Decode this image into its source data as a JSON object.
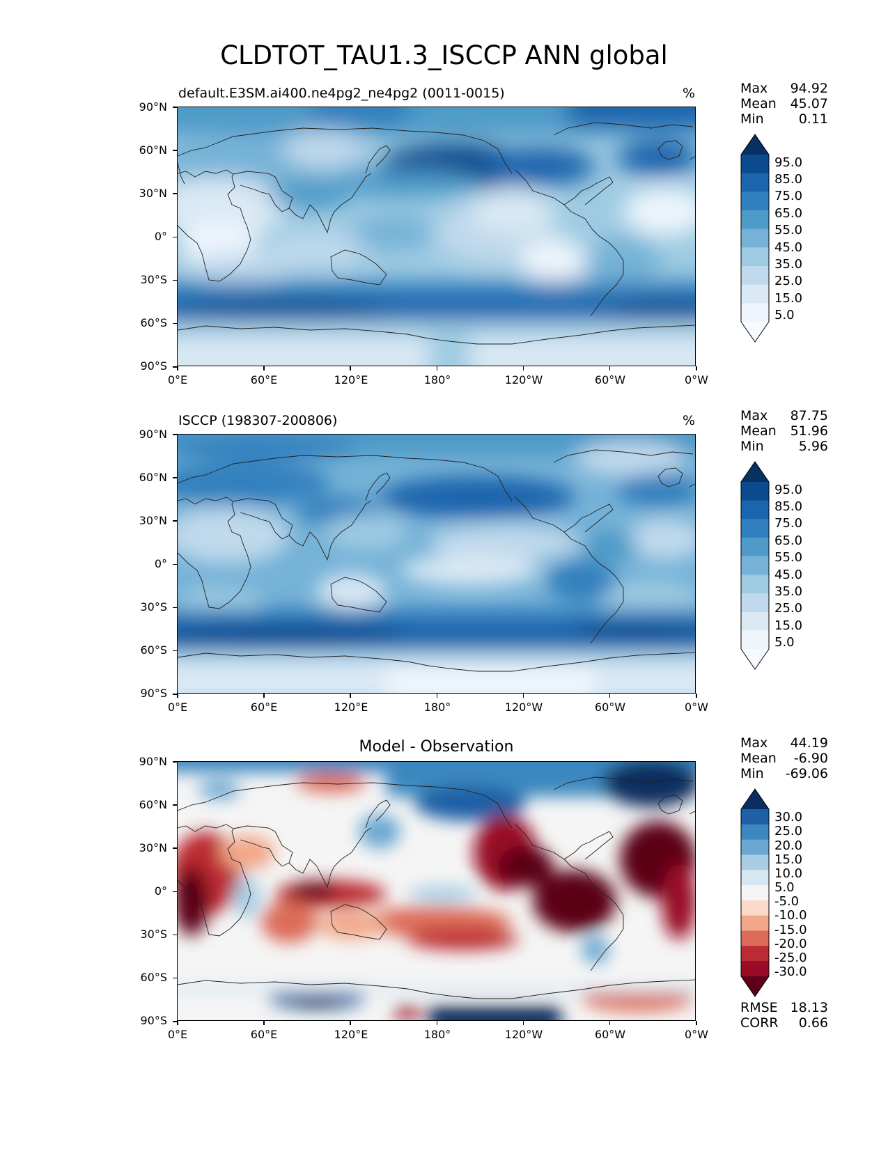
{
  "figure": {
    "title": "CLDTOT_TAU1.3_ISCCP ANN global"
  },
  "axes": {
    "lat_ticks": [
      "90°N",
      "60°N",
      "30°N",
      "0°",
      "30°S",
      "60°S",
      "90°S"
    ],
    "lon_ticks": [
      "0°E",
      "60°E",
      "120°E",
      "180°",
      "120°W",
      "60°W",
      "0°W"
    ]
  },
  "panels": [
    {
      "title": "default.E3SM.ai400.ne4pg2_ne4pg2 (0011-0015)",
      "unit": "%",
      "stats": [
        {
          "name": "Max",
          "value": "94.92"
        },
        {
          "name": "Mean",
          "value": "45.07"
        },
        {
          "name": "Min",
          "value": "0.11"
        }
      ],
      "colorbar": {
        "levels": [
          "95.0",
          "85.0",
          "75.0",
          "65.0",
          "55.0",
          "45.0",
          "35.0",
          "25.0",
          "15.0",
          "5.0"
        ],
        "colors": [
          "#083061",
          "#0b4b8e",
          "#1a65ad",
          "#3180be",
          "#4e9ac8",
          "#76b2d7",
          "#9ecbe2",
          "#c0d9ec",
          "#dae9f4",
          "#eef5fc",
          "#f7fbff"
        ]
      }
    },
    {
      "title": "ISCCP (198307-200806)",
      "unit": "%",
      "stats": [
        {
          "name": "Max",
          "value": "87.75"
        },
        {
          "name": "Mean",
          "value": "51.96"
        },
        {
          "name": "Min",
          "value": "5.96"
        }
      ],
      "colorbar": {
        "levels": [
          "95.0",
          "85.0",
          "75.0",
          "65.0",
          "55.0",
          "45.0",
          "35.0",
          "25.0",
          "15.0",
          "5.0"
        ],
        "colors": [
          "#083061",
          "#0b4b8e",
          "#1a65ad",
          "#3180be",
          "#4e9ac8",
          "#76b2d7",
          "#9ecbe2",
          "#c0d9ec",
          "#dae9f4",
          "#eef5fc",
          "#f7fbff"
        ]
      }
    },
    {
      "title": "Model - Observation",
      "unit": "",
      "stats": [
        {
          "name": "Max",
          "value": "44.19"
        },
        {
          "name": "Mean",
          "value": "-6.90"
        },
        {
          "name": "Min",
          "value": "-69.06"
        }
      ],
      "extra_stats": [
        {
          "name": "RMSE",
          "value": "18.13"
        },
        {
          "name": "CORR",
          "value": "0.66"
        }
      ],
      "colorbar": {
        "levels": [
          "30.0",
          "25.0",
          "20.0",
          "15.0",
          "10.0",
          "5.0",
          "-5.0",
          "-10.0",
          "-15.0",
          "-20.0",
          "-25.0",
          "-30.0"
        ],
        "colors": [
          "#0a2d5f",
          "#1f5fa5",
          "#3b87bf",
          "#6ca8d1",
          "#a8cde4",
          "#d7e7f1",
          "#f5f5f5",
          "#fbd9c8",
          "#f2a789",
          "#dc6c59",
          "#bc2a33",
          "#9a0c26",
          "#5c0119"
        ]
      }
    }
  ],
  "chart_data": [
    {
      "type": "heatmap",
      "title": "default.E3SM.ai400.ne4pg2_ne4pg2 (0011-0015)",
      "variable": "CLDTOT_TAU1.3_ISCCP",
      "units": "%",
      "x": "longitude",
      "y": "latitude",
      "xlim": [
        0,
        360
      ],
      "ylim": [
        -90,
        90
      ],
      "stats": {
        "max": 94.92,
        "mean": 45.07,
        "min": 0.11
      },
      "levels": [
        5,
        15,
        25,
        35,
        45,
        55,
        65,
        75,
        85,
        95
      ],
      "zonal_mean_approx": {
        "lat": [
          85,
          60,
          45,
          30,
          15,
          0,
          -15,
          -30,
          -45,
          -55,
          -65,
          -80
        ],
        "value": [
          65,
          60,
          62,
          38,
          25,
          30,
          35,
          35,
          68,
          80,
          60,
          25
        ]
      }
    },
    {
      "type": "heatmap",
      "title": "ISCCP (198307-200806)",
      "variable": "CLDTOT_TAU1.3_ISCCP",
      "units": "%",
      "x": "longitude",
      "y": "latitude",
      "xlim": [
        0,
        360
      ],
      "ylim": [
        -90,
        90
      ],
      "stats": {
        "max": 87.75,
        "mean": 51.96,
        "min": 5.96
      },
      "levels": [
        5,
        15,
        25,
        35,
        45,
        55,
        65,
        75,
        85,
        95
      ],
      "zonal_mean_approx": {
        "lat": [
          85,
          60,
          45,
          30,
          15,
          0,
          -15,
          -30,
          -45,
          -55,
          -65,
          -80
        ],
        "value": [
          55,
          68,
          72,
          45,
          42,
          55,
          48,
          48,
          72,
          80,
          70,
          22
        ]
      }
    },
    {
      "type": "heatmap",
      "title": "Model - Observation",
      "x": "longitude",
      "y": "latitude",
      "xlim": [
        0,
        360
      ],
      "ylim": [
        -90,
        90
      ],
      "stats": {
        "max": 44.19,
        "mean": -6.9,
        "min": -69.06,
        "rmse": 18.13,
        "corr": 0.66
      },
      "levels": [
        -30,
        -25,
        -20,
        -15,
        -10,
        -5,
        5,
        10,
        15,
        20,
        25,
        30
      ],
      "zonal_mean_approx": {
        "lat": [
          85,
          60,
          45,
          30,
          15,
          0,
          -15,
          -30,
          -45,
          -55,
          -65,
          -80
        ],
        "value": [
          10,
          -8,
          -10,
          -7,
          -17,
          -25,
          -13,
          -13,
          -4,
          0,
          -10,
          3
        ]
      }
    }
  ]
}
